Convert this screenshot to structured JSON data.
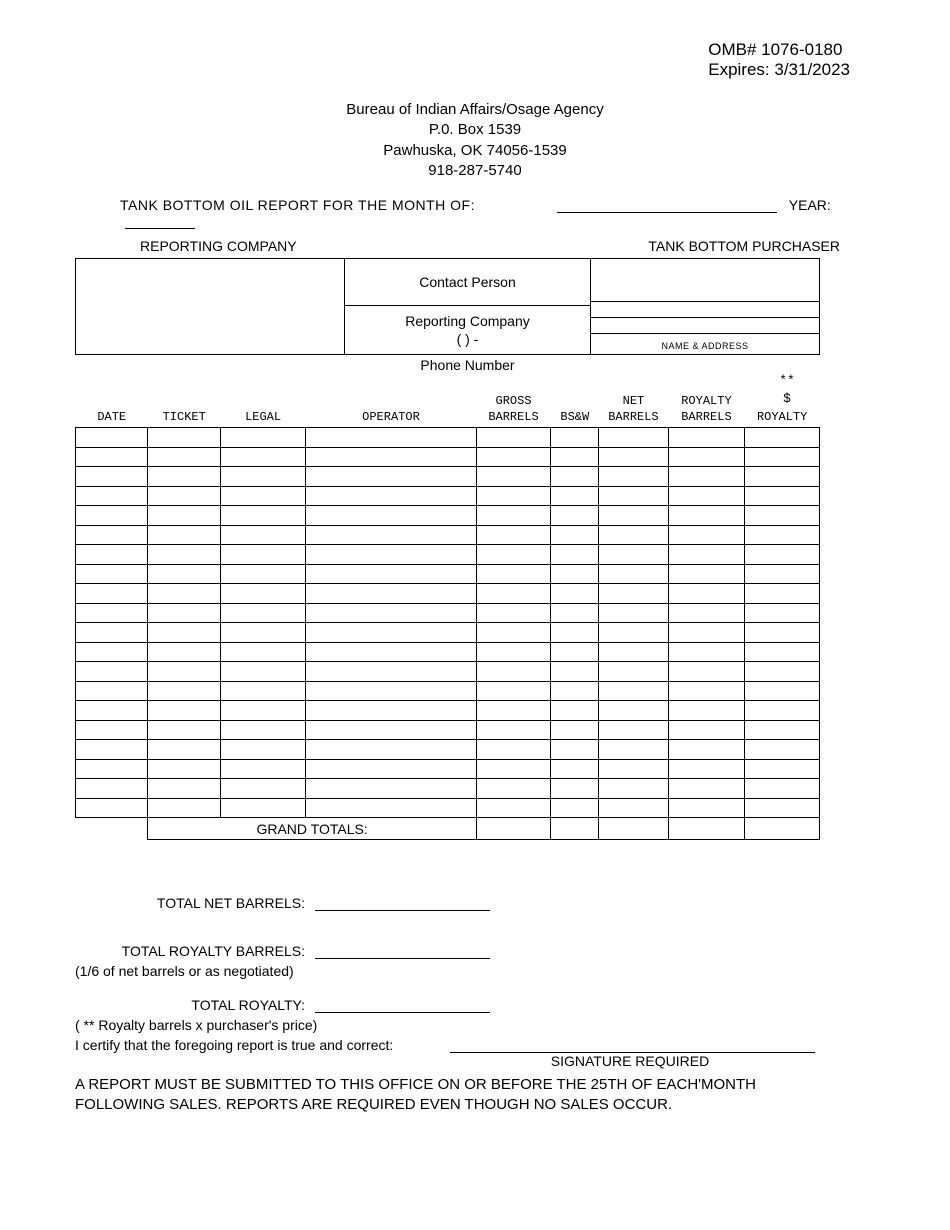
{
  "header": {
    "omb": "OMB# 1076-0180",
    "expires": "Expires: 3/31/2023"
  },
  "agency": {
    "line1": "Bureau of Indian Affairs/Osage Agency",
    "line2": "P.0. Box 1539",
    "line3": "Pawhuska, OK 74056-1539",
    "line4": "918-287-5740"
  },
  "report": {
    "title": "TANK BOTTOM OIL REPORT FOR THE MONTH OF:",
    "year_label": "YEAR:"
  },
  "parties": {
    "reporting_label": "REPORTING COMPANY",
    "purchaser_label": "TANK BOTTOM  PURCHASER",
    "contact_label": "Contact Person",
    "reporting_company_label": "Reporting Company",
    "phone_template": "(    )      -",
    "phone_label": "Phone Number",
    "name_address": "NAME & ADDRESS"
  },
  "table": {
    "extra_top": "**",
    "extra_bottom": "$",
    "columns": {
      "date": "DATE",
      "ticket": "TICKET",
      "legal": "LEGAL",
      "operator": "OPERATOR",
      "gross": "GROSS\nBARRELS",
      "bsw": "BS&W",
      "net": "NET\nBARRELS",
      "royalty_b": "ROYALTY\nBARRELS",
      "royalty": "ROYALTY"
    },
    "row_count": 20,
    "grand_totals": "GRAND TOTALS:"
  },
  "summary": {
    "total_net": "TOTAL NET BARRELS:",
    "total_royalty_barrels": "TOTAL ROYALTY BARRELS:",
    "royalty_barrels_note": "(1/6 of net barrels or as negotiated)",
    "total_royalty": "TOTAL ROYALTY:",
    "total_royalty_note": "( **  Royalty barrels x purchaser's price)",
    "cert": "I certify that the foregoing report is true and correct:",
    "signature": "SIGNATURE REQUIRED",
    "footer": "A REPORT MUST BE SUBMITTED TO THIS OFFICE ON OR BEFORE THE 25TH OF EACH'MONTH FOLLOWING SALES.  REPORTS ARE REQUIRED EVEN THOUGH NO SALES  OCCUR."
  }
}
